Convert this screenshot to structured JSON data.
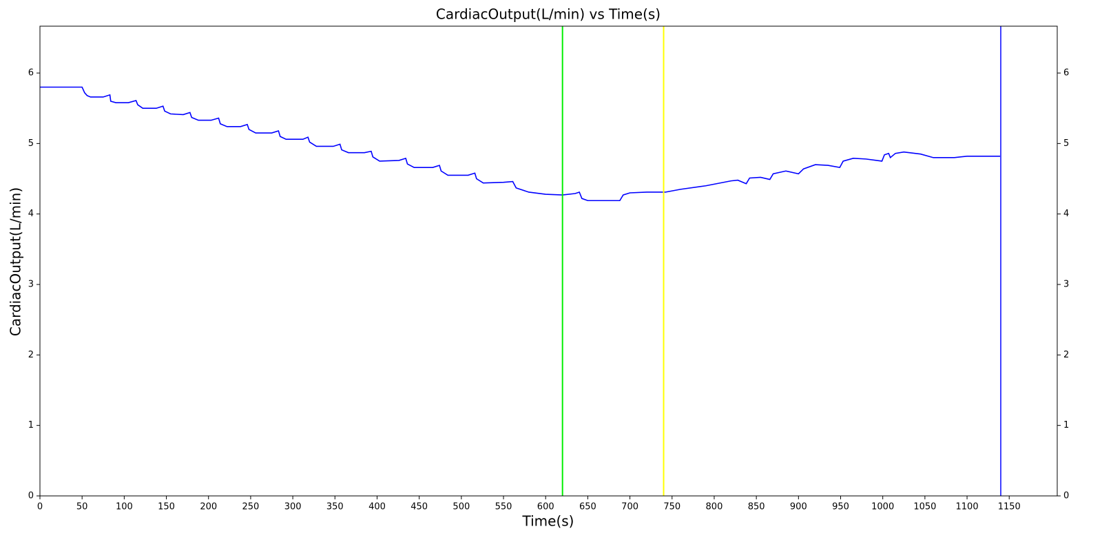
{
  "chart_data": {
    "type": "line",
    "title": "CardiacOutput(L/min) vs Time(s)",
    "xlabel": "Time(s)",
    "ylabel": "CardiacOutput(L/min)",
    "x": [
      0,
      50,
      53,
      56,
      60,
      75,
      83,
      84,
      90,
      105,
      114,
      116,
      122,
      138,
      146,
      148,
      155,
      170,
      178,
      180,
      188,
      203,
      212,
      214,
      222,
      238,
      246,
      248,
      256,
      275,
      283,
      285,
      292,
      312,
      318,
      320,
      328,
      348,
      356,
      358,
      366,
      385,
      393,
      395,
      403,
      426,
      434,
      436,
      444,
      466,
      474,
      476,
      484,
      508,
      516,
      518,
      526,
      550,
      561,
      565,
      580,
      600,
      620,
      635,
      640,
      643,
      650,
      685,
      688,
      692,
      700,
      720,
      742,
      760,
      790,
      820,
      828,
      838,
      842,
      855,
      866,
      870,
      885,
      900,
      906,
      920,
      935,
      949,
      953,
      965,
      980,
      999,
      1002,
      1007,
      1009,
      1015,
      1025,
      1045,
      1060,
      1085,
      1100,
      1140
    ],
    "series": [
      {
        "name": "CardiacOutput",
        "color": "#0000ff",
        "values": [
          5.8,
          5.8,
          5.72,
          5.68,
          5.66,
          5.66,
          5.69,
          5.6,
          5.58,
          5.58,
          5.61,
          5.55,
          5.5,
          5.5,
          5.53,
          5.46,
          5.42,
          5.41,
          5.44,
          5.37,
          5.33,
          5.33,
          5.36,
          5.28,
          5.24,
          5.24,
          5.27,
          5.2,
          5.15,
          5.15,
          5.18,
          5.1,
          5.06,
          5.06,
          5.09,
          5.02,
          4.96,
          4.96,
          4.99,
          4.91,
          4.87,
          4.87,
          4.89,
          4.81,
          4.75,
          4.76,
          4.79,
          4.71,
          4.66,
          4.66,
          4.69,
          4.61,
          4.55,
          4.55,
          4.58,
          4.5,
          4.44,
          4.45,
          4.46,
          4.37,
          4.31,
          4.28,
          4.27,
          4.29,
          4.31,
          4.22,
          4.19,
          4.19,
          4.19,
          4.27,
          4.3,
          4.31,
          4.31,
          4.35,
          4.4,
          4.47,
          4.48,
          4.43,
          4.51,
          4.52,
          4.49,
          4.57,
          4.61,
          4.57,
          4.64,
          4.7,
          4.69,
          4.66,
          4.75,
          4.79,
          4.78,
          4.75,
          4.84,
          4.86,
          4.8,
          4.86,
          4.88,
          4.85,
          4.8,
          4.8,
          4.82,
          4.82
        ]
      }
    ],
    "vlines": [
      {
        "x": 620,
        "color": "#00ee00"
      },
      {
        "x": 740,
        "color": "#ffff00"
      },
      {
        "x": 1140,
        "color": "#4040ff"
      }
    ],
    "xlim": [
      0,
      1207
    ],
    "xticks": [
      0,
      50,
      100,
      150,
      200,
      250,
      300,
      350,
      400,
      450,
      500,
      550,
      600,
      650,
      700,
      750,
      800,
      850,
      900,
      950,
      1000,
      1050,
      1100,
      1150
    ],
    "ylim": [
      0,
      6.665
    ],
    "yticks": [
      0,
      1,
      2,
      3,
      4,
      5,
      6
    ],
    "y2lim": [
      0,
      6.665
    ],
    "y2ticks": [
      0,
      1,
      2,
      3,
      4,
      5,
      6
    ]
  }
}
